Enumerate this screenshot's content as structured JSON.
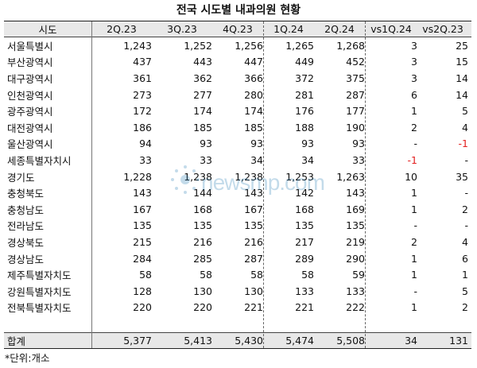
{
  "title": "전국 시도별 내과의원 현황",
  "columns": [
    "시도",
    "2Q.23",
    "3Q.23",
    "4Q.23",
    "1Q.24",
    "2Q.24",
    "vs1Q.24",
    "vs2Q.23"
  ],
  "rows": [
    {
      "name": "서울특별시",
      "v": [
        "1,243",
        "1,252",
        "1,256",
        "1,265",
        "1,268",
        "3",
        "25"
      ]
    },
    {
      "name": "부산광역시",
      "v": [
        "437",
        "443",
        "447",
        "449",
        "452",
        "3",
        "15"
      ]
    },
    {
      "name": "대구광역시",
      "v": [
        "361",
        "362",
        "366",
        "372",
        "375",
        "3",
        "14"
      ]
    },
    {
      "name": "인천광역시",
      "v": [
        "273",
        "277",
        "280",
        "281",
        "287",
        "6",
        "14"
      ]
    },
    {
      "name": "광주광역시",
      "v": [
        "172",
        "174",
        "174",
        "176",
        "177",
        "1",
        "5"
      ]
    },
    {
      "name": "대전광역시",
      "v": [
        "186",
        "185",
        "185",
        "188",
        "190",
        "2",
        "4"
      ]
    },
    {
      "name": "울산광역시",
      "v": [
        "94",
        "93",
        "93",
        "93",
        "93",
        "-",
        "-1"
      ]
    },
    {
      "name": "세종특별자치시",
      "v": [
        "33",
        "33",
        "34",
        "34",
        "33",
        "-1",
        "-"
      ]
    },
    {
      "name": "경기도",
      "v": [
        "1,228",
        "1,238",
        "1,238",
        "1,253",
        "1,263",
        "10",
        "35"
      ]
    },
    {
      "name": "충청북도",
      "v": [
        "143",
        "144",
        "143",
        "142",
        "143",
        "1",
        "-"
      ]
    },
    {
      "name": "충청남도",
      "v": [
        "167",
        "168",
        "167",
        "168",
        "169",
        "1",
        "2"
      ]
    },
    {
      "name": "전라남도",
      "v": [
        "135",
        "135",
        "135",
        "135",
        "135",
        "-",
        "-"
      ]
    },
    {
      "name": "경상북도",
      "v": [
        "215",
        "216",
        "216",
        "217",
        "219",
        "2",
        "4"
      ]
    },
    {
      "name": "경상남도",
      "v": [
        "284",
        "285",
        "287",
        "289",
        "290",
        "1",
        "6"
      ]
    },
    {
      "name": "제주특별자치도",
      "v": [
        "58",
        "58",
        "58",
        "58",
        "59",
        "1",
        "1"
      ]
    },
    {
      "name": "강원특별자치도",
      "v": [
        "128",
        "130",
        "130",
        "133",
        "133",
        "-",
        "5"
      ]
    },
    {
      "name": "전북특별자치도",
      "v": [
        "220",
        "220",
        "221",
        "221",
        "222",
        "1",
        "2"
      ]
    }
  ],
  "total": {
    "name": "합계",
    "v": [
      "5,377",
      "5,413",
      "5,430",
      "5,474",
      "5,508",
      "34",
      "131"
    ]
  },
  "negative_color": "#e31f1f",
  "header_bg": "#e8e8e8",
  "watermark": "newsmp.com",
  "footnote": "*단위:개소"
}
